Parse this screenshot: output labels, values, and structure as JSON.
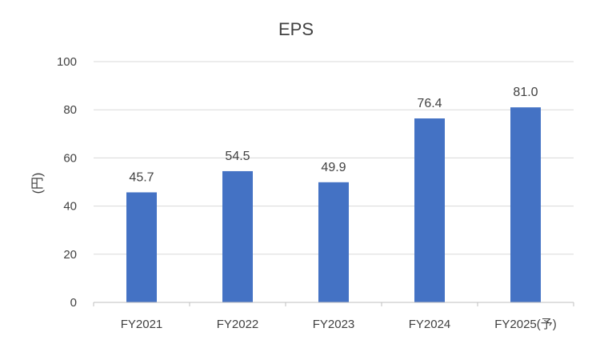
{
  "chart_data": {
    "type": "bar",
    "title": "EPS",
    "xlabel": "",
    "ylabel": "(円)",
    "categories": [
      "FY2021",
      "FY2022",
      "FY2023",
      "FY2024",
      "FY2025(予)"
    ],
    "values": [
      45.7,
      54.5,
      49.9,
      76.4,
      81.0
    ],
    "data_labels": [
      "45.7",
      "54.5",
      "49.9",
      "76.4",
      "81.0"
    ],
    "y_ticks": [
      0,
      20,
      40,
      60,
      80,
      100
    ],
    "ylim": [
      0,
      100
    ],
    "grid": true,
    "bar_color": "#4472c4",
    "legend": "none"
  }
}
